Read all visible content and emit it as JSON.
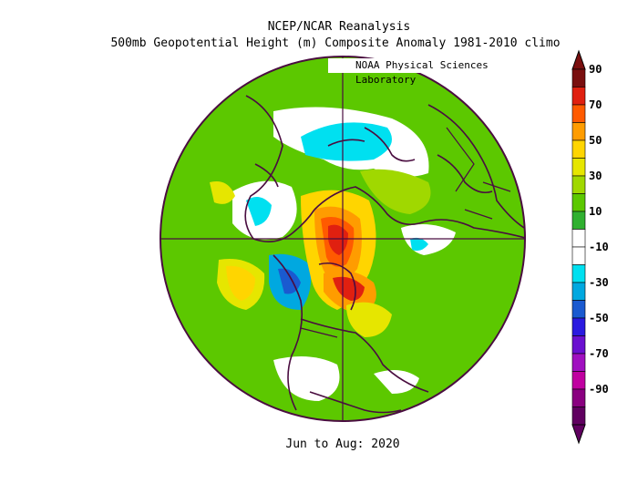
{
  "header": {
    "title": "NCEP/NCAR Reanalysis",
    "subtitle": "500mb Geopotential Height (m) Composite Anomaly 1981-2010 climo",
    "credit": "NOAA Physical Sciences Laboratory"
  },
  "footer": {
    "period": "Jun to Aug: 2020"
  },
  "colorbar": {
    "labels": [
      "90",
      "70",
      "50",
      "30",
      "10",
      "-10",
      "-30",
      "-50",
      "-70",
      "-90"
    ],
    "colors": [
      "#7a0f0f",
      "#e02010",
      "#ff5a00",
      "#ff9c00",
      "#ffd500",
      "#e6e600",
      "#a0d800",
      "#5cc800",
      "#30b030",
      "#ffffff",
      "#ffffff",
      "#00e0f0",
      "#00a8e0",
      "#1a5ad0",
      "#2a1ae0",
      "#6a10d0",
      "#a010c0",
      "#c000a0",
      "#8a0080",
      "#600060"
    ]
  },
  "map": {
    "projection": "north polar stereographic",
    "background_color": "#5cc800",
    "outline_color": "#4a0d40"
  }
}
